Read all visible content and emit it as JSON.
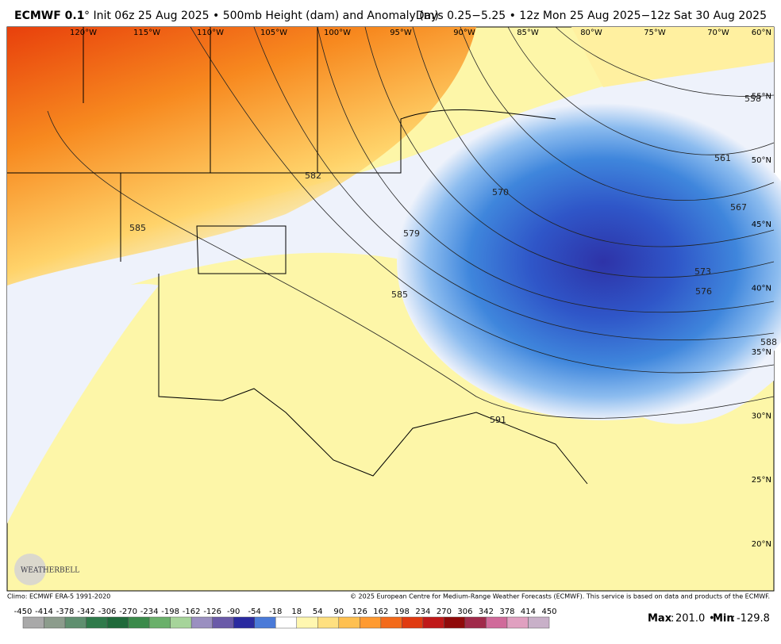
{
  "header": {
    "model": "ECMWF 0.1",
    "subtitle": "° Init 06z 25 Aug 2025 • 500mb Height (dam) and Anomaly (m)",
    "period": "Days 0.25−5.25 • 12z Mon 25 Aug 2025−12z Sat 30 Aug 2025"
  },
  "map": {
    "longitudes": [
      "120°W",
      "115°W",
      "110°W",
      "105°W",
      "100°W",
      "95°W",
      "90°W",
      "85°W",
      "80°W",
      "75°W",
      "70°W"
    ],
    "latitudes": [
      "60°N",
      "55°N",
      "50°N",
      "45°N",
      "40°N",
      "35°N",
      "30°N",
      "25°N",
      "20°N"
    ],
    "contour_labels": [
      558,
      561,
      567,
      570,
      573,
      576,
      579,
      582,
      585,
      585,
      588,
      591
    ],
    "logo": "WEATHERBELL"
  },
  "footer": {
    "climo": "Climo: ECMWF ERA-5 1991-2020",
    "copyright": "© 2025 European Centre for Medium-Range Weather Forecasts (ECMWF). This service is based on data and products of the ECMWF.",
    "max_label": "Max",
    "max": "201.0",
    "min_label": "Min",
    "min": "-129.8"
  },
  "colorbar": {
    "ticks": [
      -450,
      -414,
      -378,
      -342,
      -306,
      -270,
      -234,
      -198,
      -162,
      -126,
      -90,
      -54,
      -18,
      18,
      54,
      90,
      126,
      162,
      198,
      234,
      270,
      306,
      342,
      378,
      414,
      450
    ],
    "colors": [
      "#a9a9a9",
      "#8c9c8c",
      "#5f8f6f",
      "#2f7a4a",
      "#1f6a3a",
      "#3a8a4a",
      "#6ab06a",
      "#a6d49a",
      "#9a8fc0",
      "#6a5aa8",
      "#2a2aa0",
      "#4a7ad8",
      "#ffffff",
      "#fff7b0",
      "#ffe080",
      "#ffc050",
      "#ff9a30",
      "#f36a1a",
      "#e03a10",
      "#c01818",
      "#900a0a",
      "#a02a4a",
      "#d06a9a",
      "#e0a0c0",
      "#c8b0c8"
    ]
  }
}
